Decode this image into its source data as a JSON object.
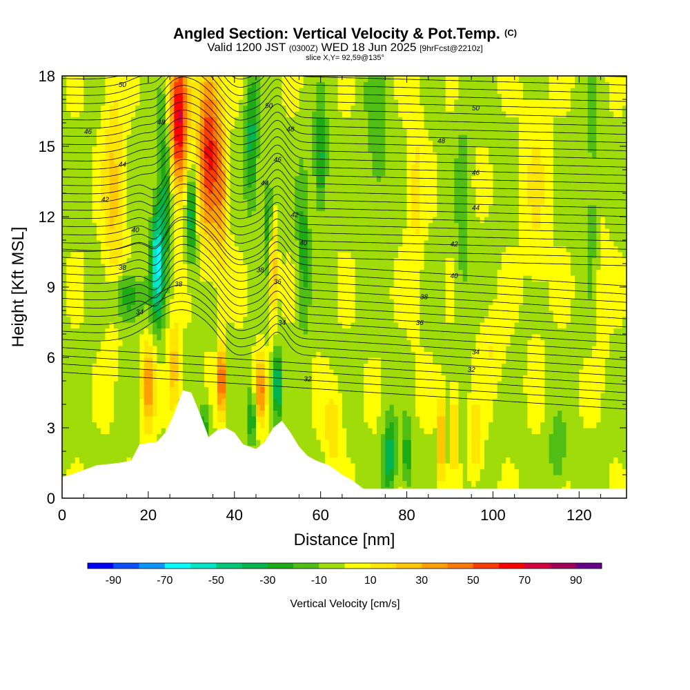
{
  "header": {
    "title": "Angled Section: Vertical Velocity & Pot.Temp.",
    "title_mark": "(C)",
    "subtitle_main": "Valid 1200 JST",
    "subtitle_small": "(0300Z)",
    "subtitle_date": "WED 18 Jun 2025",
    "subtitle_fcst": "[9hrFcst@2210z]",
    "slice": "slice X,Y= 92,59@135°"
  },
  "chart_data": {
    "type": "heatmap",
    "xlabel": "Distance [nm]",
    "ylabel": "Height [Kft MSL]",
    "xlim": [
      0,
      131
    ],
    "ylim": [
      0,
      18
    ],
    "x_ticks": [
      0,
      20,
      40,
      60,
      80,
      100,
      120
    ],
    "y_ticks": [
      0,
      3,
      6,
      9,
      12,
      15,
      18
    ],
    "colorbar": {
      "label": "Vertical Velocity [cm/s]",
      "tick_labels": [
        "-90",
        "-70",
        "-50",
        "-30",
        "-10",
        "10",
        "30",
        "50",
        "70",
        "90"
      ],
      "levels": [
        -100,
        -90,
        -80,
        -70,
        -60,
        -50,
        -40,
        -30,
        -20,
        -10,
        0,
        10,
        20,
        30,
        40,
        50,
        60,
        70,
        80,
        90,
        100
      ],
      "colors": [
        "#0000ff",
        "#0a50ff",
        "#0a96ff",
        "#00ffff",
        "#00e6c8",
        "#00c878",
        "#00b450",
        "#1eaa14",
        "#50be14",
        "#a0dc0a",
        "#ffff00",
        "#ffe600",
        "#ffc800",
        "#ffa000",
        "#ff7800",
        "#ff3c00",
        "#ff0000",
        "#d2003c",
        "#a0005a",
        "#64008c"
      ]
    },
    "terrain_profile": [
      [
        0,
        0.9
      ],
      [
        2,
        1.0
      ],
      [
        5,
        1.2
      ],
      [
        8,
        1.4
      ],
      [
        13,
        1.5
      ],
      [
        16,
        1.6
      ],
      [
        18,
        2.3
      ],
      [
        22,
        2.4
      ],
      [
        24,
        2.8
      ],
      [
        26,
        3.6
      ],
      [
        28,
        4.6
      ],
      [
        30,
        4.5
      ],
      [
        32,
        3.6
      ],
      [
        34,
        2.6
      ],
      [
        36,
        2.9
      ],
      [
        38,
        3.0
      ],
      [
        40,
        2.8
      ],
      [
        42,
        2.3
      ],
      [
        45,
        2.1
      ],
      [
        47,
        2.4
      ],
      [
        49,
        3.0
      ],
      [
        51,
        3.3
      ],
      [
        53,
        2.8
      ],
      [
        55,
        2.2
      ],
      [
        57,
        1.8
      ],
      [
        59,
        1.6
      ],
      [
        62,
        1.4
      ],
      [
        65,
        1.0
      ],
      [
        67,
        0.8
      ],
      [
        70,
        0.4
      ],
      [
        131,
        0.4
      ]
    ],
    "theta_contour_labels": [
      {
        "text": "50",
        "x": 14,
        "y": 17.65
      },
      {
        "text": "48",
        "x": 23,
        "y": 16.05
      },
      {
        "text": "46",
        "x": 6,
        "y": 15.65
      },
      {
        "text": "44",
        "x": 14,
        "y": 14.25
      },
      {
        "text": "42",
        "x": 10,
        "y": 12.75
      },
      {
        "text": "40",
        "x": 17,
        "y": 11.45
      },
      {
        "text": "38",
        "x": 14,
        "y": 9.85
      },
      {
        "text": "38",
        "x": 27,
        "y": 9.15
      },
      {
        "text": "34",
        "x": 18,
        "y": 7.95
      },
      {
        "text": "50",
        "x": 48,
        "y": 16.75
      },
      {
        "text": "48",
        "x": 53,
        "y": 15.75
      },
      {
        "text": "46",
        "x": 50,
        "y": 14.45
      },
      {
        "text": "44",
        "x": 47,
        "y": 13.45
      },
      {
        "text": "42",
        "x": 54,
        "y": 12.1
      },
      {
        "text": "40",
        "x": 56,
        "y": 10.9
      },
      {
        "text": "38",
        "x": 46,
        "y": 9.75
      },
      {
        "text": "36",
        "x": 50,
        "y": 9.25
      },
      {
        "text": "34",
        "x": 51,
        "y": 7.5
      },
      {
        "text": "32",
        "x": 57,
        "y": 5.1
      },
      {
        "text": "50",
        "x": 96,
        "y": 16.65
      },
      {
        "text": "48",
        "x": 88,
        "y": 15.25
      },
      {
        "text": "46",
        "x": 96,
        "y": 13.9
      },
      {
        "text": "44",
        "x": 96,
        "y": 12.4
      },
      {
        "text": "42",
        "x": 91,
        "y": 10.85
      },
      {
        "text": "40",
        "x": 91,
        "y": 9.5
      },
      {
        "text": "38",
        "x": 84,
        "y": 8.6
      },
      {
        "text": "36",
        "x": 83,
        "y": 7.5
      },
      {
        "text": "34",
        "x": 96,
        "y": 6.25
      },
      {
        "text": "32",
        "x": 95,
        "y": 5.5
      }
    ]
  }
}
